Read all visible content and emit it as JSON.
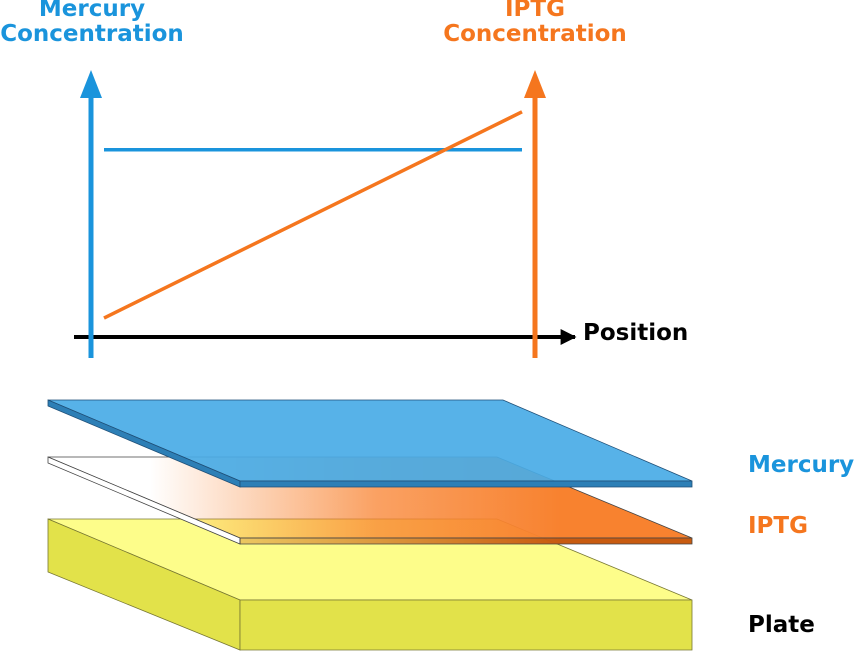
{
  "colors": {
    "mercury": "#1a94dc",
    "iptg": "#f5761e",
    "axis": "#000000",
    "mercury_layer": "#49abe6",
    "iptg_layer": "#f8822f",
    "plate_top": "#fdfd8a",
    "plate_side": "#e2e24a"
  },
  "graph": {
    "left_axis_label_line1": "Mercury",
    "left_axis_label_line2": "Concentration",
    "right_axis_label_line1": "IPTG",
    "right_axis_label_line2": "Concentration",
    "x_axis_label": "Position"
  },
  "chart_data": {
    "type": "line",
    "xlabel": "Position",
    "ylabel_left": "Mercury Concentration",
    "ylabel_right": "IPTG Concentration",
    "x": [
      0,
      1
    ],
    "series": [
      {
        "name": "Mercury",
        "axis": "left",
        "values": [
          0.79,
          0.79
        ],
        "color": "#1a94dc",
        "shape": "constant"
      },
      {
        "name": "IPTG",
        "axis": "right",
        "values": [
          0.08,
          0.95
        ],
        "color": "#f5761e",
        "shape": "linear gradient"
      }
    ],
    "ylim": [
      0,
      1
    ],
    "grid": false
  },
  "layers": {
    "mercury_label": "Mercury",
    "iptg_label": "IPTG",
    "plate_label": "Plate"
  }
}
